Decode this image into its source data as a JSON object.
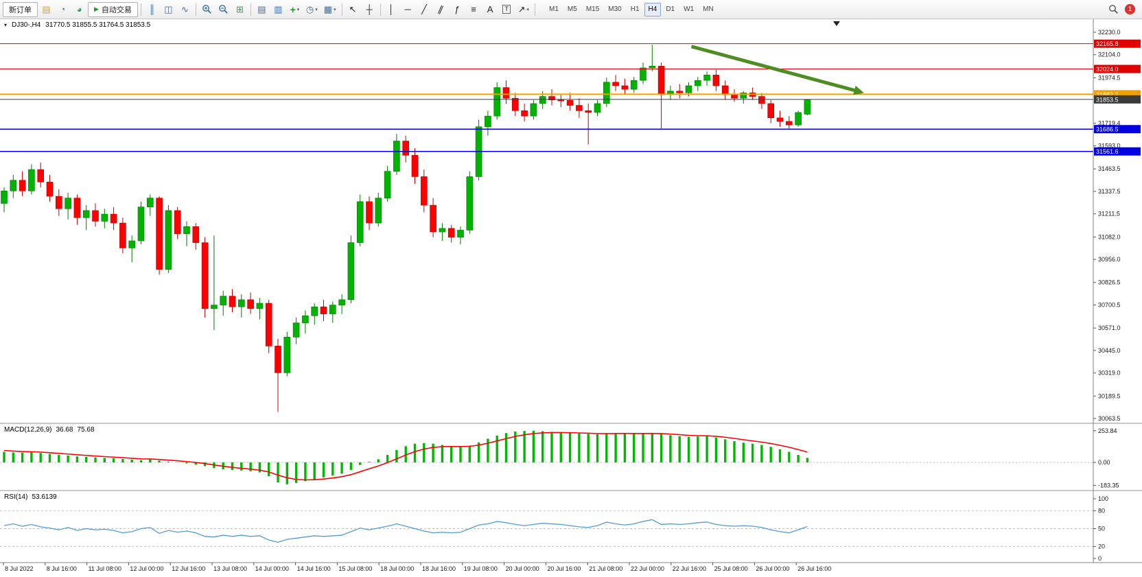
{
  "toolbar": {
    "items": [
      {
        "kind": "text",
        "name": "new-order-button",
        "label": "新订单"
      },
      {
        "kind": "icon",
        "name": "tick-chart-icon",
        "glyph": "▤",
        "color": "#d8a418"
      },
      {
        "kind": "icon",
        "name": "depth-of-market-icon",
        "glyph": "◔",
        "color": "#3a78c3"
      },
      {
        "kind": "icon",
        "name": "community-icon",
        "glyph": "◕",
        "color": "#2e9e5b"
      },
      {
        "kind": "autotrade",
        "name": "autotrading-button",
        "glyph": "▶",
        "label": "自动交易",
        "color": "#18a01c"
      },
      {
        "kind": "sep"
      },
      {
        "kind": "icon",
        "name": "bars-chart-icon",
        "glyph": "║",
        "color": "#3a6ea5"
      },
      {
        "kind": "icon",
        "name": "candles-chart-icon",
        "glyph": "◫",
        "color": "#3a6ea5"
      },
      {
        "kind": "icon",
        "name": "line-chart-icon",
        "glyph": "∿",
        "color": "#3a6ea5"
      },
      {
        "kind": "sep"
      },
      {
        "kind": "mag",
        "name": "zoom-in-icon",
        "sign": "+"
      },
      {
        "kind": "mag",
        "name": "zoom-out-icon",
        "sign": "-"
      },
      {
        "kind": "icon",
        "name": "tile-windows-icon",
        "glyph": "⊞",
        "color": "#2e9e5b"
      },
      {
        "kind": "sep"
      },
      {
        "kind": "icon",
        "name": "tile-horizontal-icon",
        "glyph": "▤",
        "color": "#3a6ea5"
      },
      {
        "kind": "icon",
        "name": "tile-vertical-icon",
        "glyph": "▥",
        "color": "#3a6ea5"
      },
      {
        "kind": "icon",
        "name": "add-indicator-icon",
        "glyph": "+",
        "color": "#14a014",
        "bold": true,
        "caret": true
      },
      {
        "kind": "icon",
        "name": "period-selector-icon",
        "glyph": "◷",
        "color": "#3a6ea5",
        "caret": true
      },
      {
        "kind": "icon",
        "name": "template-icon",
        "glyph": "▦",
        "color": "#3a6ea5",
        "caret": true
      },
      {
        "kind": "sep"
      },
      {
        "kind": "icon",
        "name": "cursor-icon",
        "glyph": "↖",
        "color": "#222"
      },
      {
        "kind": "icon",
        "name": "crosshair-icon",
        "glyph": "┼",
        "color": "#222"
      },
      {
        "kind": "sep"
      },
      {
        "kind": "icon",
        "name": "vertical-line-icon",
        "glyph": "│",
        "color": "#222"
      },
      {
        "kind": "icon",
        "name": "horizontal-line-icon",
        "glyph": "─",
        "color": "#222"
      },
      {
        "kind": "icon",
        "name": "trendline-icon",
        "glyph": "╱",
        "color": "#222"
      },
      {
        "kind": "icon",
        "name": "channel-icon",
        "glyph": "∥",
        "color": "#222",
        "slant": true
      },
      {
        "kind": "icon",
        "name": "fibonacci-icon",
        "glyph": "ƒ",
        "color": "#222"
      },
      {
        "kind": "icon",
        "name": "fibo-levels-icon",
        "glyph": "≡",
        "color": "#222"
      },
      {
        "kind": "icon",
        "name": "text-icon",
        "glyph": "A",
        "color": "#222"
      },
      {
        "kind": "icon",
        "name": "text-label-icon",
        "glyph": "T",
        "color": "#222",
        "boxed": true
      },
      {
        "kind": "icon",
        "name": "arrows-icon",
        "glyph": "↗",
        "color": "#222",
        "caret": true
      },
      {
        "kind": "sep"
      }
    ],
    "timeframes": {
      "items": [
        "M1",
        "M5",
        "M15",
        "M30",
        "H1",
        "H4",
        "D1",
        "W1",
        "MN"
      ],
      "active": "H4"
    },
    "notification_count": "1"
  },
  "chart": {
    "symbol_period": "DJ30-,H4",
    "ohlc_text": "31770.5 31855.5 31764.5 31853.5",
    "collapse_glyph": "▾"
  },
  "colors": {
    "candle_up": "#00b300",
    "candle_up_edge": "#007a00",
    "candle_down": "#ff0000",
    "candle_down_edge": "#c00000",
    "macd_histogram": "#00b800",
    "macd_signal": "#ff0000",
    "rsi_line": "#4f9bd5",
    "trend_arrow": "#4e8d21"
  },
  "chart_data": {
    "type": "candlestick",
    "symbol": "DJ30-",
    "period": "H4",
    "ohlc_current": {
      "open": 31770.5,
      "high": 31855.5,
      "low": 31764.5,
      "close": 31853.5
    },
    "price_axis": {
      "max": 32230.0,
      "min": 30063.5,
      "labels": [
        32230.0,
        32104.0,
        31974.5,
        31719.4,
        31593.0,
        31463.5,
        31337.5,
        31211.5,
        31082.0,
        30956.0,
        30826.5,
        30700.5,
        30571.0,
        30445.0,
        30319.0,
        30189.5,
        30063.5
      ]
    },
    "levels": [
      {
        "name": "resistance-1",
        "price": 32165.8,
        "color": "#e00000",
        "width": 1
      },
      {
        "name": "resistance-2",
        "price": 32024.0,
        "color": "#e00000",
        "width": 1
      },
      {
        "name": "pivot-orange",
        "price": 31882.2,
        "color": "#f0a000",
        "width": 2
      },
      {
        "name": "current-price",
        "price": 31853.5,
        "color": "#3a3a3a",
        "width": 1
      },
      {
        "name": "support-1",
        "price": 31686.5,
        "color": "#0000e0",
        "width": 1.5
      },
      {
        "name": "support-2",
        "price": 31561.6,
        "color": "#0000e0",
        "width": 1.5
      }
    ],
    "trend_arrow": {
      "start_bar": 75.3,
      "start_price": 32150,
      "end_bar": 94.2,
      "end_price": 31890
    },
    "shift_marker_bar": 91.2,
    "candles": [
      [
        31270,
        31360,
        31220,
        31340
      ],
      [
        31340,
        31430,
        31300,
        31400
      ],
      [
        31400,
        31450,
        31310,
        31340
      ],
      [
        31340,
        31490,
        31320,
        31460
      ],
      [
        31460,
        31500,
        31360,
        31390
      ],
      [
        31390,
        31430,
        31280,
        31310
      ],
      [
        31310,
        31350,
        31200,
        31240
      ],
      [
        31240,
        31330,
        31180,
        31300
      ],
      [
        31300,
        31320,
        31150,
        31190
      ],
      [
        31190,
        31260,
        31120,
        31230
      ],
      [
        31230,
        31270,
        31140,
        31170
      ],
      [
        31170,
        31240,
        31130,
        31210
      ],
      [
        31210,
        31250,
        31120,
        31160
      ],
      [
        31160,
        31190,
        30990,
        31020
      ],
      [
        31020,
        31090,
        30940,
        31060
      ],
      [
        31060,
        31280,
        31040,
        31250
      ],
      [
        31250,
        31320,
        31200,
        31300
      ],
      [
        31300,
        31310,
        30870,
        30900
      ],
      [
        30900,
        31260,
        30880,
        31230
      ],
      [
        31230,
        31250,
        31070,
        31100
      ],
      [
        31100,
        31170,
        31030,
        31140
      ],
      [
        31140,
        31160,
        31010,
        31050
      ],
      [
        31050,
        31080,
        30630,
        30680
      ],
      [
        30680,
        31090,
        30560,
        30700
      ],
      [
        30700,
        30780,
        30640,
        30750
      ],
      [
        30750,
        30790,
        30660,
        30690
      ],
      [
        30690,
        30760,
        30630,
        30730
      ],
      [
        30730,
        30770,
        30650,
        30680
      ],
      [
        30680,
        30740,
        30620,
        30710
      ],
      [
        30710,
        30730,
        30430,
        30470
      ],
      [
        30470,
        30510,
        30100,
        30320
      ],
      [
        30320,
        30550,
        30300,
        30520
      ],
      [
        30520,
        30630,
        30480,
        30600
      ],
      [
        30600,
        30670,
        30540,
        30640
      ],
      [
        30640,
        30710,
        30590,
        30690
      ],
      [
        30690,
        30730,
        30610,
        30650
      ],
      [
        30650,
        30720,
        30600,
        30700
      ],
      [
        30700,
        30760,
        30650,
        30730
      ],
      [
        30730,
        31090,
        30710,
        31050
      ],
      [
        31050,
        31320,
        31030,
        31280
      ],
      [
        31280,
        31310,
        31120,
        31160
      ],
      [
        31160,
        31330,
        31140,
        31300
      ],
      [
        31300,
        31480,
        31280,
        31450
      ],
      [
        31450,
        31660,
        31430,
        31620
      ],
      [
        31620,
        31650,
        31500,
        31540
      ],
      [
        31540,
        31580,
        31380,
        31420
      ],
      [
        31420,
        31460,
        31220,
        31260
      ],
      [
        31260,
        31300,
        31080,
        31110
      ],
      [
        31110,
        31160,
        31060,
        31130
      ],
      [
        31130,
        31150,
        31050,
        31080
      ],
      [
        31080,
        31140,
        31040,
        31120
      ],
      [
        31120,
        31450,
        31100,
        31420
      ],
      [
        31420,
        31740,
        31400,
        31700
      ],
      [
        31700,
        31790,
        31650,
        31760
      ],
      [
        31760,
        31950,
        31740,
        31920
      ],
      [
        31920,
        31960,
        31830,
        31860
      ],
      [
        31860,
        31890,
        31760,
        31790
      ],
      [
        31790,
        31830,
        31730,
        31760
      ],
      [
        31760,
        31850,
        31740,
        31830
      ],
      [
        31830,
        31900,
        31800,
        31870
      ],
      [
        31870,
        31910,
        31820,
        31850
      ],
      [
        31850,
        31880,
        31810,
        31848
      ],
      [
        31848,
        31890,
        31790,
        31820
      ],
      [
        31820,
        31860,
        31750,
        31790
      ],
      [
        31790,
        31830,
        31600,
        31780
      ],
      [
        31780,
        31850,
        31760,
        31830
      ],
      [
        31830,
        31975,
        31810,
        31950
      ],
      [
        31950,
        31990,
        31900,
        31930
      ],
      [
        31930,
        31970,
        31880,
        31910
      ],
      [
        31910,
        31980,
        31890,
        31960
      ],
      [
        31960,
        32060,
        31940,
        32030
      ],
      [
        32030,
        32160,
        32010,
        32040
      ],
      [
        32040,
        32060,
        31690,
        31880
      ],
      [
        31880,
        31930,
        31850,
        31900
      ],
      [
        31900,
        31940,
        31860,
        31890
      ],
      [
        31890,
        31950,
        31870,
        31930
      ],
      [
        31930,
        31980,
        31900,
        31960
      ],
      [
        31960,
        32010,
        31930,
        31990
      ],
      [
        31990,
        32020,
        31900,
        31930
      ],
      [
        31930,
        31960,
        31850,
        31880
      ],
      [
        31880,
        31910,
        31840,
        31860
      ],
      [
        31860,
        31900,
        31830,
        31890
      ],
      [
        31890,
        31920,
        31850,
        31870
      ],
      [
        31870,
        31890,
        31800,
        31830
      ],
      [
        31830,
        31850,
        31720,
        31750
      ],
      [
        31750,
        31790,
        31700,
        31730
      ],
      [
        31730,
        31760,
        31690,
        31710
      ],
      [
        31710,
        31790,
        31700,
        31780
      ],
      [
        31770.5,
        31855.5,
        31764.5,
        31853.5
      ]
    ],
    "macd": {
      "label": "MACD(12,26,9)",
      "current_main": "36.68",
      "current_signal": "75.68",
      "scale": [
        253.84,
        0.0,
        -183.35
      ],
      "values": [
        85,
        80,
        78,
        82,
        75,
        68,
        60,
        55,
        48,
        44,
        40,
        36,
        33,
        28,
        22,
        18,
        25,
        15,
        5,
        2,
        -8,
        -18,
        -30,
        -45,
        -55,
        -60,
        -65,
        -70,
        -80,
        -110,
        -160,
        -175,
        -165,
        -150,
        -135,
        -120,
        -105,
        -90,
        -60,
        -20,
        5,
        25,
        60,
        100,
        130,
        150,
        155,
        150,
        140,
        130,
        125,
        135,
        160,
        190,
        215,
        235,
        248,
        252,
        253.84,
        250,
        245,
        240,
        235,
        232,
        228,
        226,
        230,
        234,
        233,
        230,
        232,
        235,
        228,
        218,
        210,
        205,
        208,
        210,
        200,
        185,
        170,
        158,
        150,
        140,
        125,
        105,
        85,
        60,
        36.68
      ]
    },
    "rsi": {
      "label": "RSI(14)",
      "value": "53.6139",
      "levels": [
        80,
        50,
        20
      ],
      "scale_labels": [
        100,
        80,
        50,
        20,
        0
      ],
      "values": [
        55,
        58,
        54,
        57,
        53,
        51,
        48,
        52,
        47,
        50,
        48,
        49,
        47,
        43,
        45,
        50,
        52,
        42,
        47,
        44,
        46,
        43,
        37,
        36,
        39,
        37,
        39,
        37,
        38,
        31,
        27,
        32,
        34,
        36,
        38,
        37,
        38,
        39,
        45,
        51,
        48,
        51,
        54,
        58,
        54,
        50,
        46,
        43,
        44,
        43,
        44,
        50,
        56,
        58,
        62,
        60,
        57,
        55,
        57,
        59,
        58,
        57,
        55,
        53,
        52,
        55,
        61,
        58,
        56,
        58,
        62,
        65,
        57,
        58,
        57,
        58,
        60,
        61,
        57,
        55,
        54,
        55,
        54,
        52,
        48,
        45,
        43,
        48,
        53.6
      ]
    },
    "time_axis": {
      "labels": [
        "8 Jul 2022",
        "8 Jul 16:00",
        "11 Jul 08:00",
        "12 Jul 00:00",
        "12 Jul 16:00",
        "13 Jul 08:00",
        "14 Jul 00:00",
        "14 Jul 16:00",
        "15 Jul 08:00",
        "18 Jul 00:00",
        "18 Jul 16:00",
        "19 Jul 08:00",
        "20 Jul 00:00",
        "20 Jul 16:00",
        "21 Jul 08:00",
        "22 Jul 00:00",
        "22 Jul 16:00",
        "25 Jul 08:00",
        "26 Jul 00:00",
        "26 Jul 16:00"
      ]
    }
  }
}
